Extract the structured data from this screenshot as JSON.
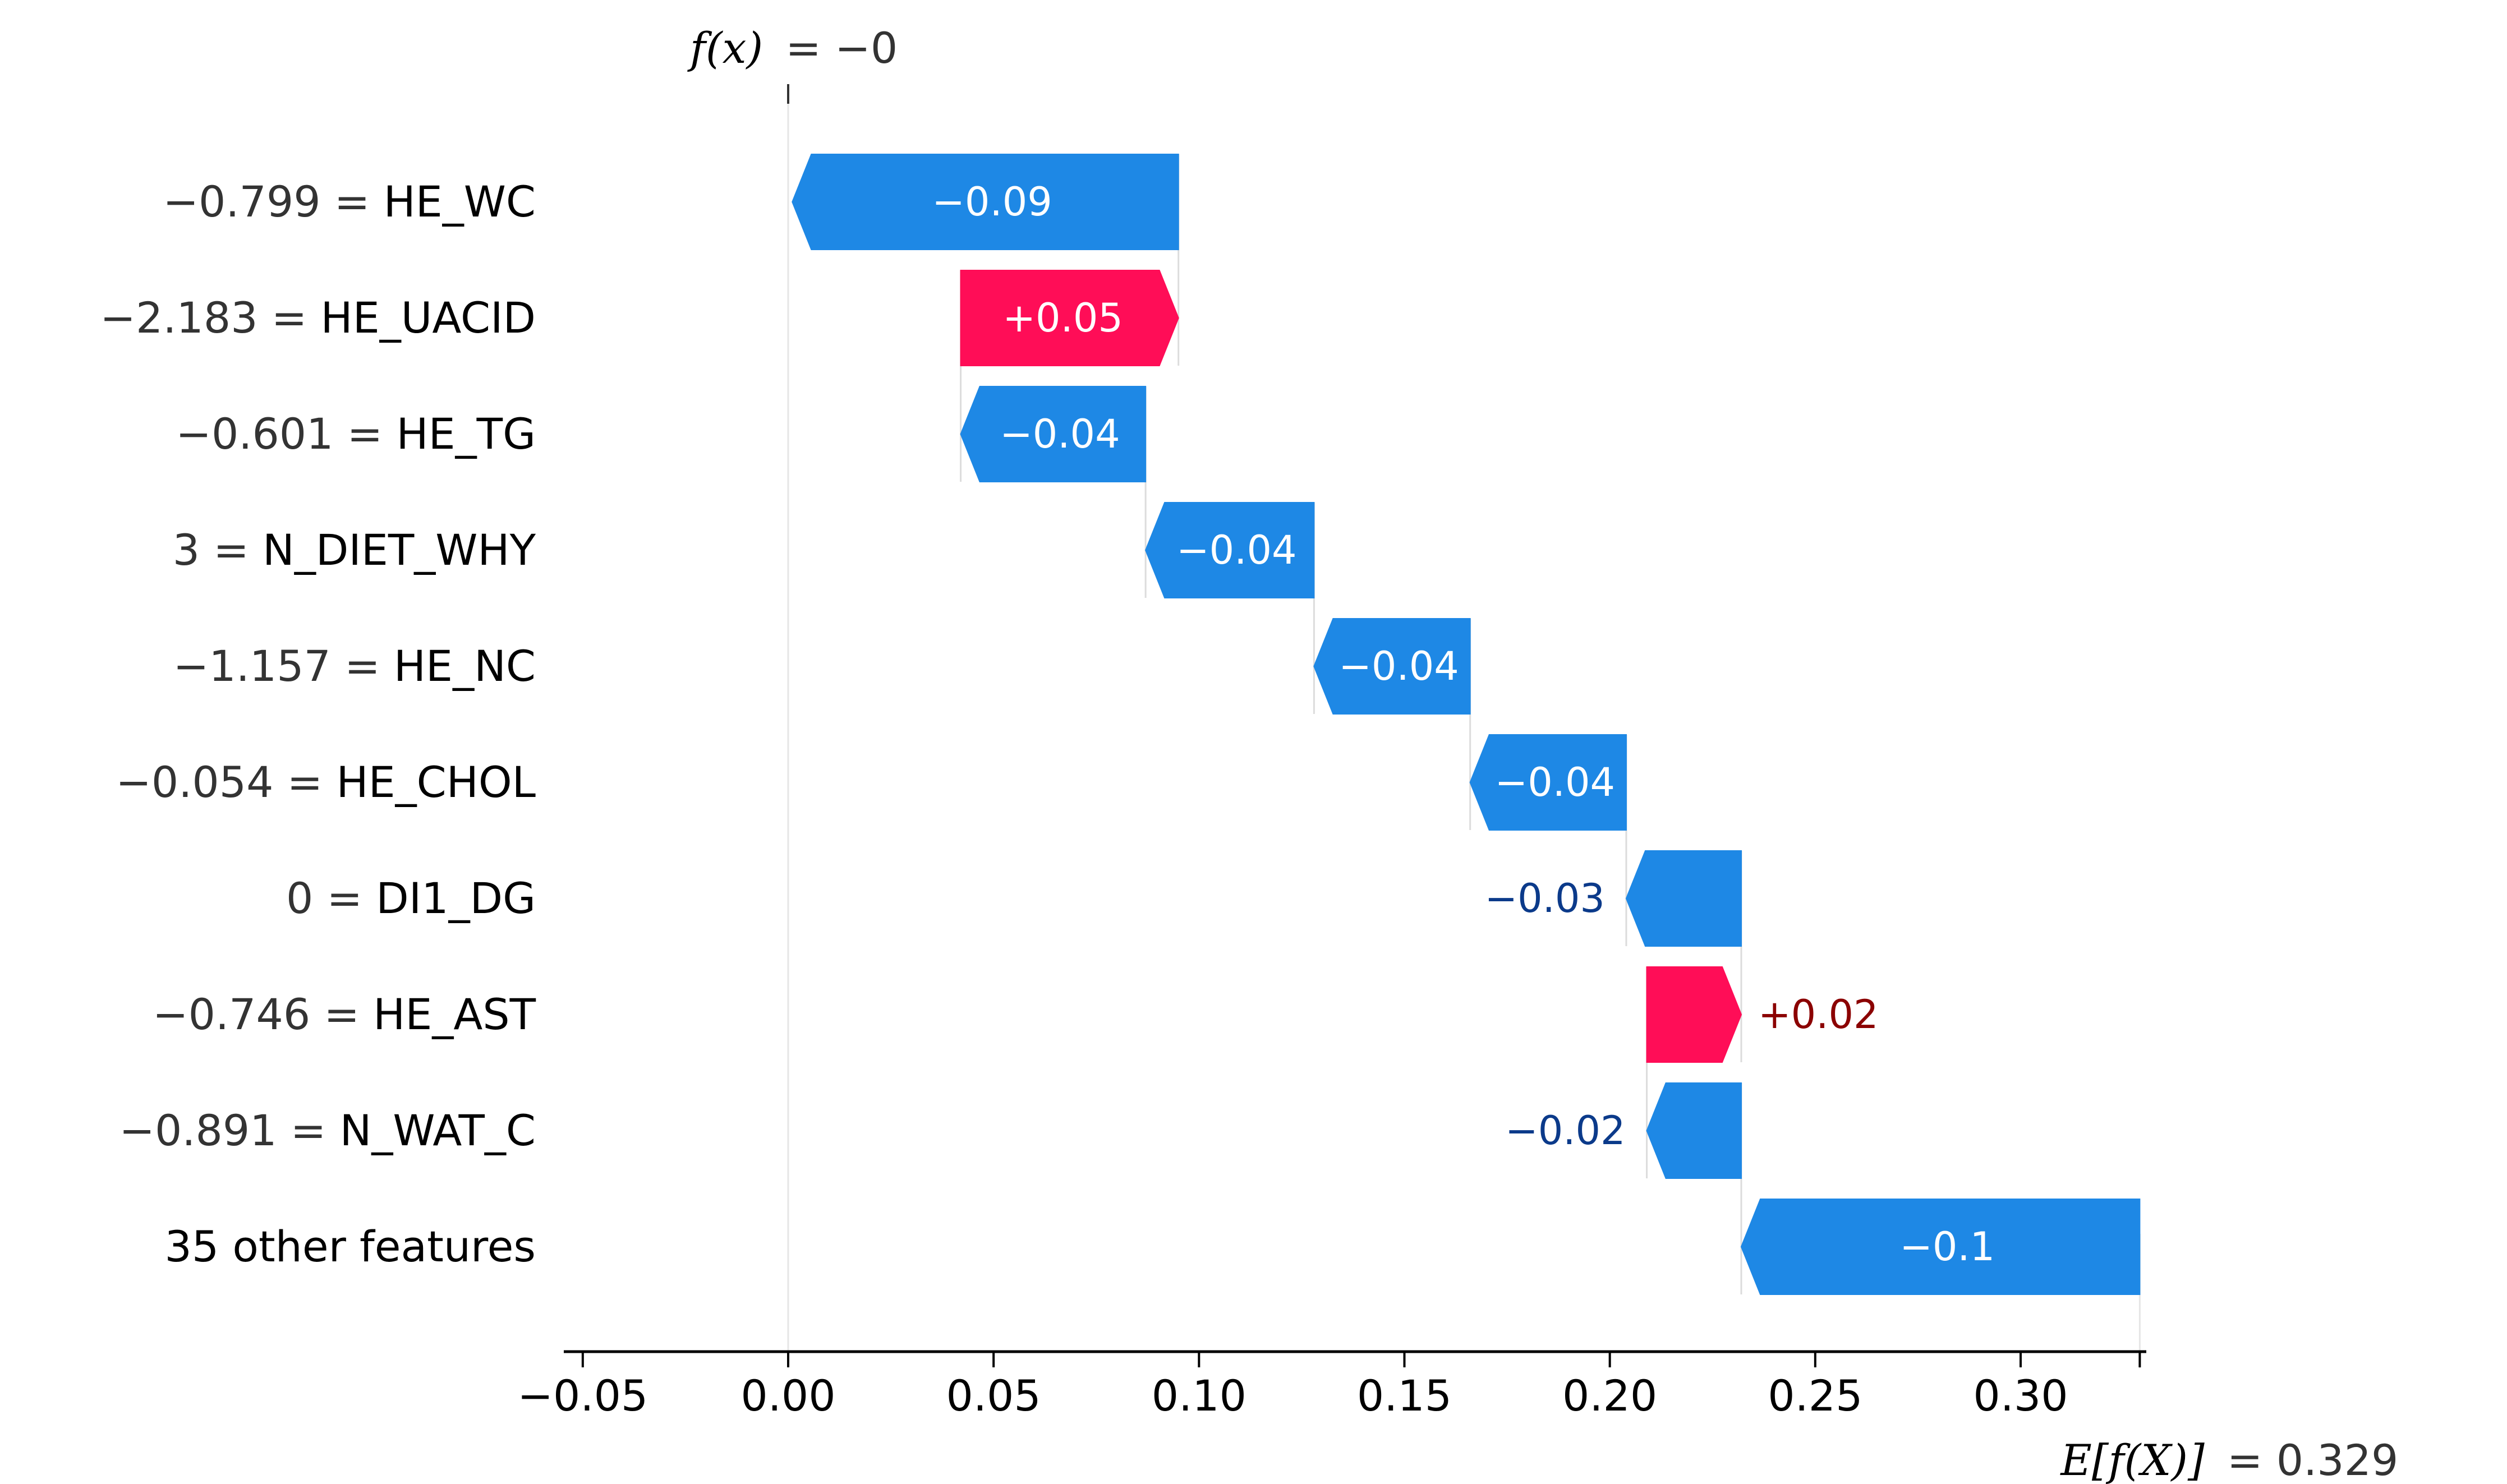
{
  "chart_data": {
    "type": "waterfall",
    "fx_label": "f(x)",
    "fx_value": "= −0",
    "fx": 0.0,
    "base_label": "E[f(X)]",
    "base_value_text": "= 0.329",
    "base_value": 0.329,
    "xlim": [
      -0.055,
      0.332
    ],
    "ticks": [
      -0.05,
      0.0,
      0.05,
      0.1,
      0.15,
      0.2,
      0.25,
      0.3
    ],
    "tick_labels": [
      "−0.05",
      "0.00",
      "0.05",
      "0.10",
      "0.15",
      "0.20",
      "0.25",
      "0.30"
    ],
    "features": [
      {
        "value": "−0.799",
        "name": "HE_WC",
        "contribution": -0.094,
        "label": "−0.09"
      },
      {
        "value": "−2.183",
        "name": "HE_UACID",
        "contribution": 0.053,
        "label": "+0.05"
      },
      {
        "value": "−0.601",
        "name": "HE_TG",
        "contribution": -0.045,
        "label": "−0.04"
      },
      {
        "value": "3",
        "name": "N_DIET_WHY",
        "contribution": -0.041,
        "label": "−0.04"
      },
      {
        "value": "−1.157",
        "name": "HE_NC",
        "contribution": -0.038,
        "label": "−0.04"
      },
      {
        "value": "−0.054",
        "name": "HE_CHOL",
        "contribution": -0.038,
        "label": "−0.04"
      },
      {
        "value": "0",
        "name": "DI1_DG",
        "contribution": -0.028,
        "label": "−0.03"
      },
      {
        "value": "−0.746",
        "name": "HE_AST",
        "contribution": 0.023,
        "label": "+0.02"
      },
      {
        "value": "−0.891",
        "name": "N_WAT_C",
        "contribution": -0.023,
        "label": "−0.02"
      },
      {
        "value": "",
        "name": "35 other features",
        "contribution": -0.097,
        "label": "−0.1"
      }
    ],
    "colors": {
      "positive": "#ff0d57",
      "negative": "#1e88e5",
      "positive_text": "#8b0000",
      "negative_text": "#0b3a8a"
    }
  }
}
